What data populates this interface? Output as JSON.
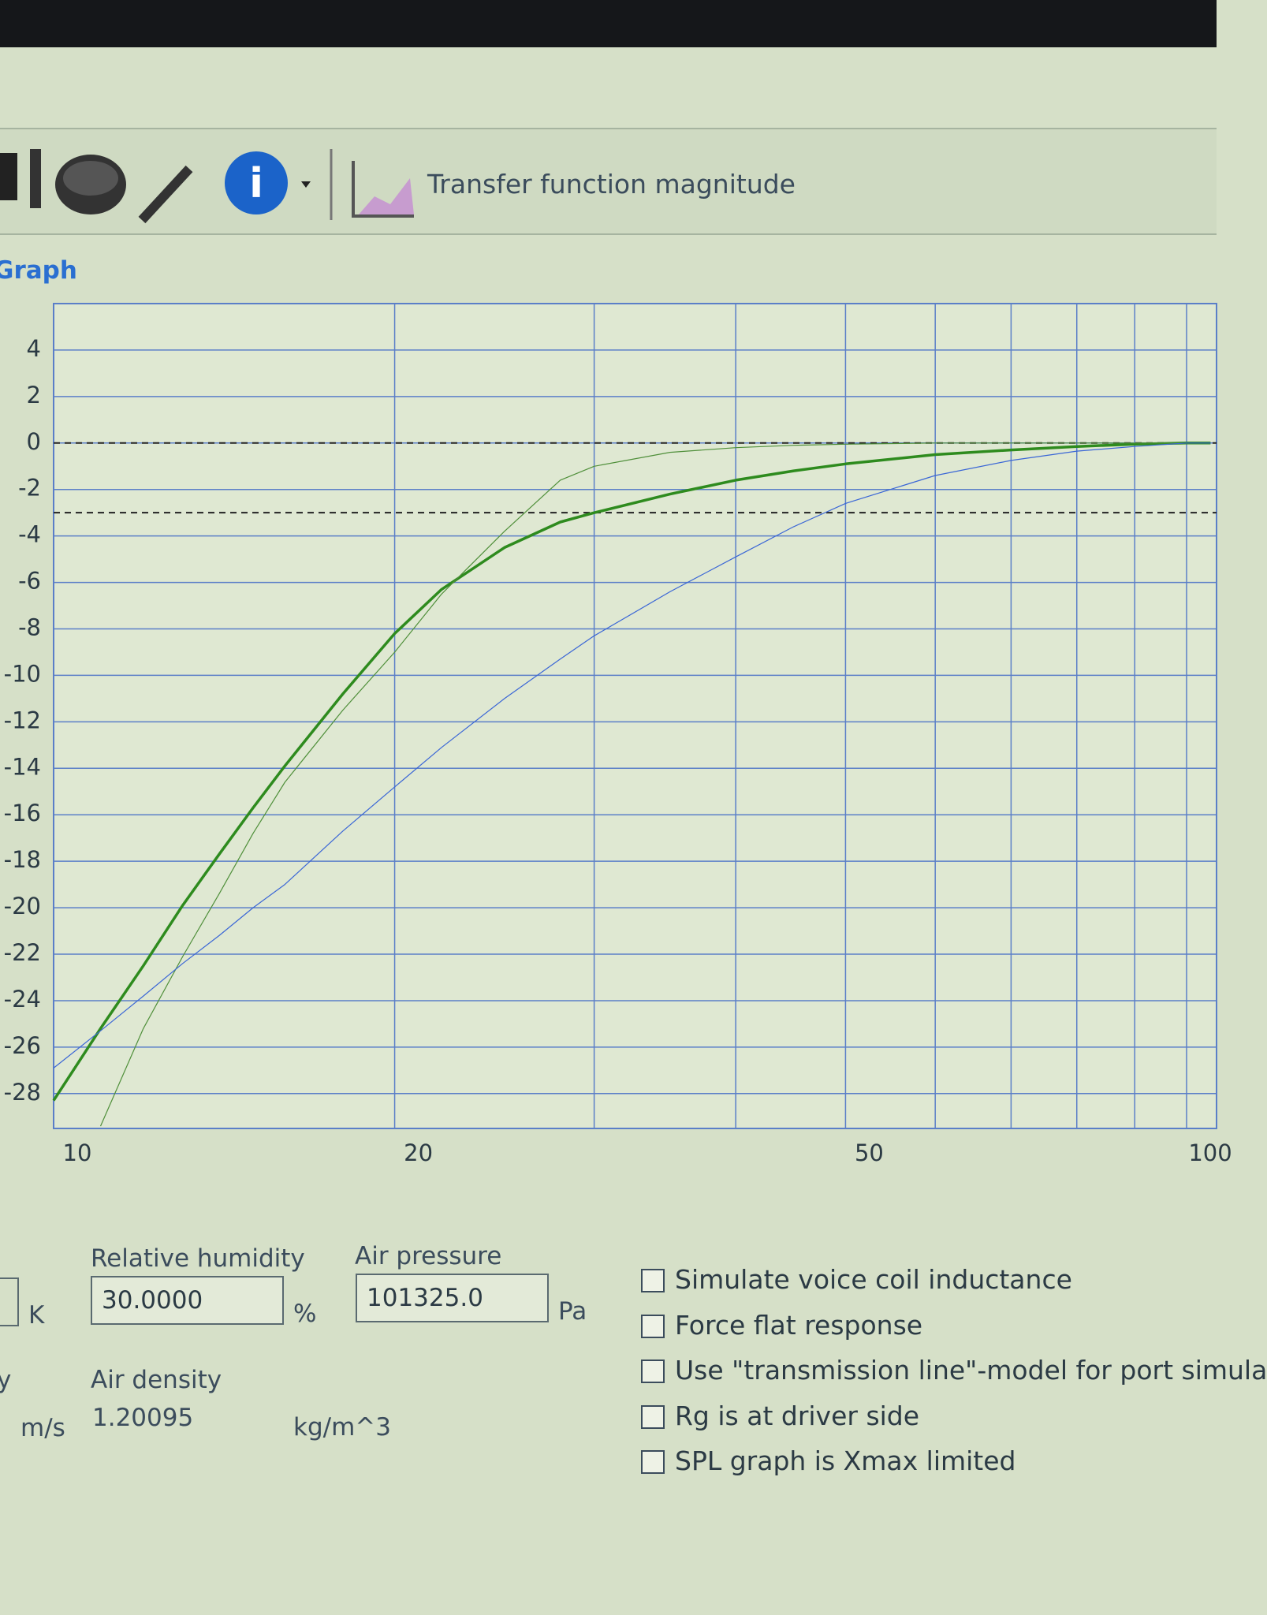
{
  "toolbar": {
    "graph_name": "Transfer function magnitude"
  },
  "section_label": "Graph",
  "chart_data": {
    "type": "line",
    "x": [
      10,
      11,
      12,
      13,
      14,
      15,
      16,
      18,
      20,
      22,
      25,
      28,
      30,
      35,
      40,
      45,
      50,
      60,
      70,
      80,
      90,
      100,
      105
    ],
    "series": [
      {
        "color": "#2e8b1e",
        "width": 3.5,
        "values": [
          -28.3,
          -25.2,
          -22.5,
          -19.9,
          -17.7,
          -15.7,
          -13.9,
          -10.8,
          -8.2,
          -6.3,
          -4.5,
          -3.4,
          -3.0,
          -2.2,
          -1.6,
          -1.2,
          -0.9,
          -0.5,
          -0.3,
          -0.15,
          -0.05,
          0,
          0
        ]
      },
      {
        "color": "#4f8f3a",
        "width": 1.2,
        "values": [
          null,
          -29.4,
          -25.2,
          -22.1,
          -19.4,
          -16.8,
          -14.6,
          -11.5,
          -9.0,
          -6.5,
          -3.8,
          -1.6,
          -1.0,
          -0.4,
          -0.2,
          -0.1,
          -0.05,
          0,
          0,
          0,
          0,
          0,
          0
        ]
      },
      {
        "color": "#3a66d6",
        "width": 1.2,
        "values": [
          -26.9,
          -25.3,
          -23.8,
          -22.4,
          -21.2,
          -20.0,
          -19.0,
          -16.7,
          -14.8,
          -13.1,
          -11.0,
          -9.3,
          -8.3,
          -6.4,
          -4.9,
          -3.6,
          -2.6,
          -1.4,
          -0.75,
          -0.35,
          -0.15,
          0,
          0
        ]
      }
    ],
    "xlim": [
      10,
      105
    ],
    "xlog": true,
    "xticks": [
      10,
      20,
      50,
      100
    ],
    "x_minor_grid": [
      30,
      40,
      60,
      70,
      80,
      90
    ],
    "ylim": [
      -29.5,
      6
    ],
    "yticks": [
      4,
      2,
      0,
      -2,
      -4,
      -6,
      -8,
      -10,
      -12,
      -14,
      -16,
      -18,
      -20,
      -22,
      -24,
      -26,
      -28
    ],
    "reference_lines": [
      0,
      -3
    ],
    "grid": true
  },
  "panel": {
    "temperature_unit": "K",
    "humidity": {
      "label": "Relative humidity",
      "value": "30.0000",
      "unit": "%"
    },
    "pressure": {
      "label": "Air pressure",
      "value": "101325.0",
      "unit": "Pa"
    },
    "speed_fragment": "y",
    "speed_unit": "m/s",
    "density": {
      "label": "Air density",
      "value": "1.20095",
      "unit": "kg/m^3"
    },
    "options": [
      "Simulate voice coil inductance",
      "Force flat response",
      "Use \"transmission line\"-model for port simula",
      "Rg is at driver side",
      "SPL graph is Xmax limited"
    ]
  }
}
